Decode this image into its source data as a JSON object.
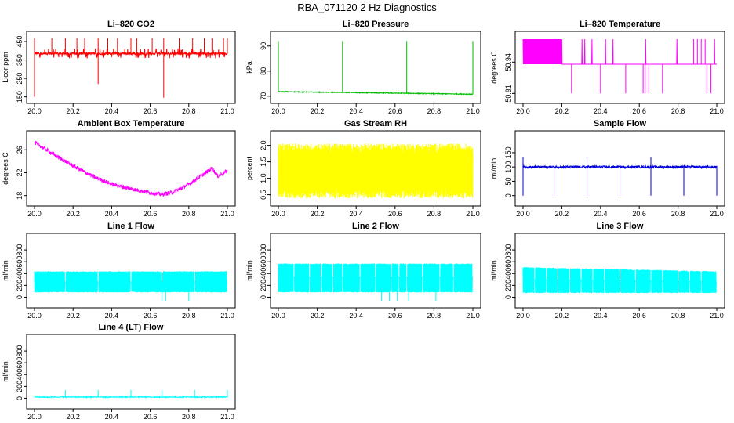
{
  "figure_title": "RBA_071120  2 Hz Diagnostics",
  "chart_data": [
    {
      "type": "line",
      "title": "Li–820 CO2",
      "ylabel": "Licor ppm",
      "color": "#ff0000",
      "xlim": [
        20.0,
        21.0
      ],
      "ylim": [
        140,
        480
      ],
      "xticks": [
        "20.0",
        "20.2",
        "20.4",
        "20.6",
        "20.8",
        "21.0"
      ],
      "yticks": [
        150,
        250,
        350,
        450
      ],
      "ytick_labels": [
        "150",
        "250",
        "350",
        "450"
      ],
      "series": [
        {
          "name": "CO2",
          "pattern": "co2",
          "base": 385,
          "noise": 6,
          "spikes_up": [
            20.0,
            20.09,
            20.16,
            20.22,
            20.26,
            20.33,
            20.38,
            20.43,
            20.5,
            20.53,
            20.61,
            20.67,
            20.75,
            20.82,
            20.88,
            20.92,
            20.98,
            21.0
          ],
          "spike_up_value": 468,
          "spikes_down": [
            20.0,
            20.33,
            20.67
          ],
          "spike_down_values": [
            150,
            220,
            145
          ]
        }
      ]
    },
    {
      "type": "line",
      "title": "Li–820 Pressure",
      "ylabel": "kPa",
      "color": "#00bb00",
      "xlim": [
        20.0,
        21.0
      ],
      "ylim": [
        69,
        94
      ],
      "xticks": [
        "20.0",
        "20.2",
        "20.4",
        "20.6",
        "20.8",
        "21.0"
      ],
      "yticks": [
        70,
        80,
        90
      ],
      "ytick_labels": [
        "70",
        "80",
        "90"
      ],
      "series": [
        {
          "name": "Pressure",
          "pattern": "pressure",
          "start": 71.8,
          "end": 70.8,
          "noise": 0.3,
          "spikes": [
            20.0,
            20.33,
            20.66,
            21.0
          ],
          "spike_value": 92
        }
      ]
    },
    {
      "type": "line",
      "title": "Li–820 Temperature",
      "ylabel": "degrees C",
      "color": "#ff00ff",
      "xlim": [
        20.0,
        21.0
      ],
      "ylim": [
        50.905,
        50.965
      ],
      "xticks": [
        "20.0",
        "20.2",
        "20.4",
        "20.6",
        "20.8",
        "21.0"
      ],
      "yticks": [
        50.91,
        50.94
      ],
      "ytick_labels": [
        "50.91",
        "50.94"
      ],
      "series": [
        {
          "name": "Temperature",
          "pattern": "digital",
          "low": 50.938,
          "high": 50.962,
          "dense_until": 20.2,
          "drops_to": 50.91,
          "drops": [
            20.25,
            20.4,
            20.53,
            20.62,
            20.63,
            20.65,
            20.72,
            20.95,
            20.97
          ]
        }
      ]
    },
    {
      "type": "line",
      "title": "Ambient Box Temperature",
      "ylabel": "degrees C",
      "color": "#ff00ff",
      "xlim": [
        20.0,
        21.0
      ],
      "ylim": [
        17,
        28.5
      ],
      "xticks": [
        "20.0",
        "20.2",
        "20.4",
        "20.6",
        "20.8",
        "21.0"
      ],
      "yticks": [
        18,
        22,
        26
      ],
      "ytick_labels": [
        "18",
        "22",
        "26"
      ],
      "series": [
        {
          "name": "Box temp",
          "pattern": "curve",
          "points": [
            [
              20.0,
              27.3
            ],
            [
              20.1,
              25.2
            ],
            [
              20.2,
              23.2
            ],
            [
              20.3,
              21.4
            ],
            [
              20.4,
              20.0
            ],
            [
              20.5,
              19.2
            ],
            [
              20.6,
              18.5
            ],
            [
              20.66,
              18.2
            ],
            [
              20.72,
              18.6
            ],
            [
              20.8,
              20.0
            ],
            [
              20.88,
              21.8
            ],
            [
              20.92,
              22.8
            ],
            [
              20.95,
              21.4
            ],
            [
              21.0,
              22.3
            ]
          ],
          "noise": 0.35
        }
      ]
    },
    {
      "type": "line",
      "title": "Gas Stream RH",
      "ylabel": "percent",
      "color": "#ffff00",
      "xlim": [
        20.0,
        21.0
      ],
      "ylim": [
        0.3,
        2.3
      ],
      "xticks": [
        "20.0",
        "20.2",
        "20.4",
        "20.6",
        "20.8",
        "21.0"
      ],
      "yticks": [
        0.5,
        1.0,
        1.5,
        2.0
      ],
      "ytick_labels": [
        "0.5",
        "1.0",
        "1.5",
        "2.0"
      ],
      "series": [
        {
          "name": "RH",
          "pattern": "band",
          "low": 0.6,
          "high": 1.85,
          "noise": 0.15
        }
      ]
    },
    {
      "type": "line",
      "title": "Sample Flow",
      "ylabel": "ml/min",
      "color": "#0000dd",
      "xlim": [
        20.0,
        21.0
      ],
      "ylim": [
        -20,
        210
      ],
      "xticks": [
        "20.0",
        "20.2",
        "20.4",
        "20.6",
        "20.8",
        "21.0"
      ],
      "yticks": [
        0,
        50,
        100,
        150
      ],
      "ytick_labels": [
        "0",
        "50",
        "100",
        "150"
      ],
      "series": [
        {
          "name": "Sample flow",
          "pattern": "flat_spikes",
          "base": 100,
          "noise": 4,
          "spikes_down": [
            20.0,
            20.16,
            20.33,
            20.5,
            20.66,
            20.83,
            21.0
          ],
          "spike_down_value": 0,
          "spikes_up": [
            20.0,
            20.33,
            20.66
          ],
          "spike_up_value": 135
        }
      ]
    },
    {
      "type": "line",
      "title": "Line 1 Flow",
      "ylabel": "ml/min",
      "color": "#00ffff",
      "xlim": [
        20.0,
        21.0
      ],
      "ylim": [
        -100,
        1000
      ],
      "xticks": [
        "20.0",
        "20.2",
        "20.4",
        "20.6",
        "20.8",
        "21.0"
      ],
      "yticks": [
        0,
        200,
        400,
        600,
        800
      ],
      "ytick_labels": [
        "0",
        "200",
        "400",
        "600",
        "800"
      ],
      "series": [
        {
          "name": "Line 1",
          "pattern": "block",
          "low": 90,
          "high": 430,
          "gaps": [
            20.16,
            20.33,
            20.5,
            20.66,
            20.83,
            21.0
          ],
          "dips": [
            20.66,
            20.68,
            20.8
          ],
          "dip_value": -60
        }
      ]
    },
    {
      "type": "line",
      "title": "Line 2 Flow",
      "ylabel": "ml/min",
      "color": "#00ffff",
      "xlim": [
        20.0,
        21.0
      ],
      "ylim": [
        -100,
        1000
      ],
      "xticks": [
        "20.0",
        "20.2",
        "20.4",
        "20.6",
        "20.8",
        "21.0"
      ],
      "yticks": [
        0,
        200,
        400,
        600,
        800
      ],
      "ytick_labels": [
        "0",
        "200",
        "400",
        "600",
        "800"
      ],
      "series": [
        {
          "name": "Line 2",
          "pattern": "block",
          "low": 90,
          "high": 560,
          "gaps": [
            20.08,
            20.16,
            20.22,
            20.28,
            20.33,
            20.42,
            20.5,
            20.58,
            20.62,
            20.66,
            20.74,
            20.83,
            20.9,
            21.0
          ],
          "dips": [
            20.53,
            20.57,
            20.61,
            20.67,
            20.81
          ],
          "dip_value": -60
        }
      ]
    },
    {
      "type": "line",
      "title": "Line 3 Flow",
      "ylabel": "ml/min",
      "color": "#00ffff",
      "xlim": [
        20.0,
        21.0
      ],
      "ylim": [
        -100,
        1000
      ],
      "xticks": [
        "20.0",
        "20.2",
        "20.4",
        "20.6",
        "20.8",
        "21.0"
      ],
      "yticks": [
        0,
        200,
        400,
        600,
        800
      ],
      "ytick_labels": [
        "0",
        "200",
        "400",
        "600",
        "800"
      ],
      "series": [
        {
          "name": "Line 3",
          "pattern": "block",
          "low": 80,
          "high": 500,
          "high_end": 430,
          "gaps": [
            20.06,
            20.12,
            20.18,
            20.24,
            20.3,
            20.36,
            20.42,
            20.5,
            20.58,
            20.66,
            20.72,
            20.8,
            20.86,
            20.92,
            21.0
          ],
          "dips": [],
          "dip_value": 0
        }
      ]
    },
    {
      "type": "line",
      "title": "Line 4 (LT) Flow",
      "ylabel": "ml/min",
      "color": "#00ffff",
      "xlim": [
        20.0,
        21.0
      ],
      "ylim": [
        -100,
        1000
      ],
      "xticks": [
        "20.0",
        "20.2",
        "20.4",
        "20.6",
        "20.8",
        "21.0"
      ],
      "yticks": [
        0,
        200,
        400,
        600,
        800
      ],
      "ytick_labels": [
        "0",
        "200",
        "400",
        "600",
        "800"
      ],
      "series": [
        {
          "name": "Line 4",
          "pattern": "flat_spikes",
          "base": 20,
          "noise": 8,
          "spikes_up": [
            20.16,
            20.33,
            20.5,
            20.66,
            20.83,
            21.0
          ],
          "spike_up_value": 140,
          "spikes_down": [],
          "spike_down_value": 0
        }
      ]
    }
  ]
}
